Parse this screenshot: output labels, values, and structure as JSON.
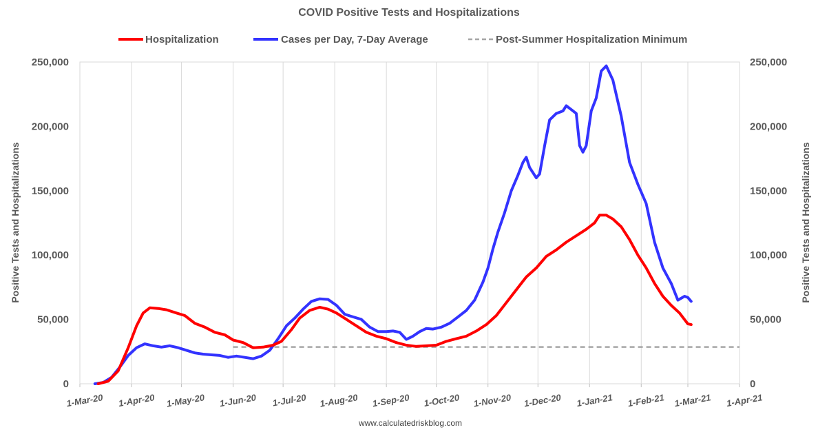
{
  "chart_data": {
    "type": "line",
    "title": "COVID Positive Tests and Hospitalizations",
    "ylabel_left": "Positive Tests and Hospitalizations",
    "ylabel_right": "Positive Tests and Hospitalizations",
    "source": "www.calculatedriskblog.com",
    "ylim": [
      0,
      250000
    ],
    "x_range": [
      "2020-03-01",
      "2021-04-01"
    ],
    "y_ticks": [
      0,
      50000,
      100000,
      150000,
      200000,
      250000
    ],
    "y_tick_labels": [
      "0",
      "50,000",
      "100,000",
      "150,000",
      "200,000",
      "250,000"
    ],
    "x_ticks": [
      "2020-03-01",
      "2020-04-01",
      "2020-05-01",
      "2020-06-01",
      "2020-07-01",
      "2020-08-01",
      "2020-09-01",
      "2020-10-01",
      "2020-11-01",
      "2020-12-01",
      "2021-01-01",
      "2021-02-01",
      "2021-03-01",
      "2021-04-01"
    ],
    "x_tick_labels": [
      "1-Mar-20",
      "1-Apr-20",
      "1-May-20",
      "1-Jun-20",
      "1-Jul-20",
      "1-Aug-20",
      "1-Sep-20",
      "1-Oct-20",
      "1-Nov-20",
      "1-Dec-20",
      "1-Jan-21",
      "1-Feb-21",
      "1-Mar-21",
      "1-Apr-21"
    ],
    "grid": "vertical",
    "legend_position": "top",
    "series": [
      {
        "name": "Hospitalization",
        "color": "#ff0000",
        "points": [
          [
            "2020-03-12",
            0
          ],
          [
            "2020-03-18",
            2000
          ],
          [
            "2020-03-24",
            10000
          ],
          [
            "2020-03-30",
            28000
          ],
          [
            "2020-04-04",
            45000
          ],
          [
            "2020-04-08",
            55000
          ],
          [
            "2020-04-12",
            59000
          ],
          [
            "2020-04-17",
            58500
          ],
          [
            "2020-04-22",
            57500
          ],
          [
            "2020-04-28",
            55000
          ],
          [
            "2020-05-03",
            53000
          ],
          [
            "2020-05-09",
            47000
          ],
          [
            "2020-05-15",
            44000
          ],
          [
            "2020-05-21",
            40000
          ],
          [
            "2020-05-27",
            38000
          ],
          [
            "2020-06-01",
            34000
          ],
          [
            "2020-06-07",
            32000
          ],
          [
            "2020-06-13",
            28000
          ],
          [
            "2020-06-19",
            28500
          ],
          [
            "2020-06-25",
            30000
          ],
          [
            "2020-06-30",
            33000
          ],
          [
            "2020-07-06",
            42000
          ],
          [
            "2020-07-11",
            51000
          ],
          [
            "2020-07-17",
            57000
          ],
          [
            "2020-07-23",
            59500
          ],
          [
            "2020-07-28",
            58000
          ],
          [
            "2020-08-02",
            55000
          ],
          [
            "2020-08-08",
            50000
          ],
          [
            "2020-08-14",
            45000
          ],
          [
            "2020-08-20",
            40000
          ],
          [
            "2020-08-26",
            37000
          ],
          [
            "2020-09-01",
            35000
          ],
          [
            "2020-09-07",
            32000
          ],
          [
            "2020-09-13",
            30000
          ],
          [
            "2020-09-19",
            29000
          ],
          [
            "2020-09-25",
            29500
          ],
          [
            "2020-10-01",
            30000
          ],
          [
            "2020-10-07",
            33000
          ],
          [
            "2020-10-13",
            35000
          ],
          [
            "2020-10-19",
            37000
          ],
          [
            "2020-10-25",
            41000
          ],
          [
            "2020-10-31",
            46000
          ],
          [
            "2020-11-06",
            53000
          ],
          [
            "2020-11-12",
            63000
          ],
          [
            "2020-11-18",
            73000
          ],
          [
            "2020-11-24",
            83000
          ],
          [
            "2020-11-30",
            90000
          ],
          [
            "2020-12-06",
            99000
          ],
          [
            "2020-12-12",
            104000
          ],
          [
            "2020-12-18",
            110000
          ],
          [
            "2020-12-24",
            115000
          ],
          [
            "2020-12-30",
            120000
          ],
          [
            "2021-01-04",
            125000
          ],
          [
            "2021-01-07",
            131000
          ],
          [
            "2021-01-11",
            131000
          ],
          [
            "2021-01-15",
            128000
          ],
          [
            "2021-01-20",
            122000
          ],
          [
            "2021-01-25",
            112000
          ],
          [
            "2021-01-30",
            100000
          ],
          [
            "2021-02-04",
            90000
          ],
          [
            "2021-02-09",
            78000
          ],
          [
            "2021-02-14",
            68000
          ],
          [
            "2021-02-19",
            61000
          ],
          [
            "2021-02-24",
            55000
          ],
          [
            "2021-03-01",
            46500
          ],
          [
            "2021-03-03",
            46000
          ]
        ]
      },
      {
        "name": "Cases per Day, 7-Day Average",
        "color": "#3333ff",
        "points": [
          [
            "2020-03-10",
            0
          ],
          [
            "2020-03-15",
            1000
          ],
          [
            "2020-03-20",
            5000
          ],
          [
            "2020-03-25",
            13000
          ],
          [
            "2020-03-30",
            22000
          ],
          [
            "2020-04-04",
            28000
          ],
          [
            "2020-04-09",
            31000
          ],
          [
            "2020-04-14",
            29500
          ],
          [
            "2020-04-19",
            28500
          ],
          [
            "2020-04-24",
            29500
          ],
          [
            "2020-04-29",
            28000
          ],
          [
            "2020-05-04",
            26000
          ],
          [
            "2020-05-09",
            24000
          ],
          [
            "2020-05-14",
            23000
          ],
          [
            "2020-05-19",
            22500
          ],
          [
            "2020-05-24",
            22000
          ],
          [
            "2020-05-29",
            20500
          ],
          [
            "2020-06-03",
            21500
          ],
          [
            "2020-06-08",
            20500
          ],
          [
            "2020-06-13",
            19500
          ],
          [
            "2020-06-18",
            21500
          ],
          [
            "2020-06-23",
            26000
          ],
          [
            "2020-06-28",
            35000
          ],
          [
            "2020-07-03",
            45000
          ],
          [
            "2020-07-08",
            51000
          ],
          [
            "2020-07-13",
            58000
          ],
          [
            "2020-07-18",
            64000
          ],
          [
            "2020-07-23",
            66000
          ],
          [
            "2020-07-28",
            65500
          ],
          [
            "2020-08-02",
            61000
          ],
          [
            "2020-08-07",
            54000
          ],
          [
            "2020-08-12",
            52000
          ],
          [
            "2020-08-17",
            50000
          ],
          [
            "2020-08-22",
            44000
          ],
          [
            "2020-08-27",
            40500
          ],
          [
            "2020-09-01",
            40500
          ],
          [
            "2020-09-05",
            41000
          ],
          [
            "2020-09-09",
            40000
          ],
          [
            "2020-09-13",
            34500
          ],
          [
            "2020-09-17",
            37000
          ],
          [
            "2020-09-21",
            40500
          ],
          [
            "2020-09-25",
            43000
          ],
          [
            "2020-09-29",
            42500
          ],
          [
            "2020-10-04",
            44000
          ],
          [
            "2020-10-09",
            47000
          ],
          [
            "2020-10-14",
            52000
          ],
          [
            "2020-10-19",
            57000
          ],
          [
            "2020-10-24",
            65000
          ],
          [
            "2020-10-29",
            79000
          ],
          [
            "2020-11-01",
            90000
          ],
          [
            "2020-11-04",
            105000
          ],
          [
            "2020-11-07",
            118000
          ],
          [
            "2020-11-11",
            133000
          ],
          [
            "2020-11-15",
            150000
          ],
          [
            "2020-11-19",
            162000
          ],
          [
            "2020-11-22",
            172000
          ],
          [
            "2020-11-24",
            176000
          ],
          [
            "2020-11-26",
            168000
          ],
          [
            "2020-11-30",
            160000
          ],
          [
            "2020-12-02",
            163000
          ],
          [
            "2020-12-05",
            185000
          ],
          [
            "2020-12-08",
            205000
          ],
          [
            "2020-12-12",
            210000
          ],
          [
            "2020-12-16",
            212000
          ],
          [
            "2020-12-18",
            216000
          ],
          [
            "2020-12-21",
            213000
          ],
          [
            "2020-12-24",
            210000
          ],
          [
            "2020-12-26",
            185000
          ],
          [
            "2020-12-28",
            180000
          ],
          [
            "2020-12-30",
            185000
          ],
          [
            "2021-01-02",
            212000
          ],
          [
            "2021-01-05",
            222000
          ],
          [
            "2021-01-08",
            243000
          ],
          [
            "2021-01-11",
            247000
          ],
          [
            "2021-01-15",
            236000
          ],
          [
            "2021-01-20",
            208000
          ],
          [
            "2021-01-25",
            172000
          ],
          [
            "2021-01-30",
            155000
          ],
          [
            "2021-02-04",
            140000
          ],
          [
            "2021-02-09",
            110000
          ],
          [
            "2021-02-14",
            90000
          ],
          [
            "2021-02-19",
            78000
          ],
          [
            "2021-02-23",
            65000
          ],
          [
            "2021-02-27",
            68000
          ],
          [
            "2021-03-01",
            67000
          ],
          [
            "2021-03-03",
            64000
          ]
        ]
      },
      {
        "name": "Post-Summer Hospitalization Minimum",
        "color": "#a6a6a6",
        "dashed": true,
        "points": [
          [
            "2020-06-01",
            28600
          ],
          [
            "2021-04-01",
            28600
          ]
        ]
      }
    ]
  }
}
